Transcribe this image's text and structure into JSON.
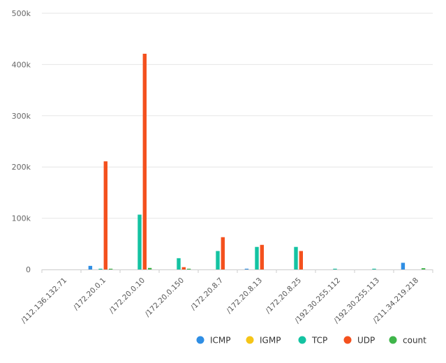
{
  "chart_data": {
    "type": "bar",
    "categories": [
      "/112.136.132.71",
      "/172.20.0.1",
      "/172.20.0.10",
      "/172.20.0.150",
      "/172.20.8.7",
      "/172.20.8.13",
      "/172.20.8.25",
      "/192.30.255.112",
      "/192.30.255.113",
      "/211.34.219.218"
    ],
    "series": [
      {
        "name": "ICMP",
        "color": "#2f8ee4",
        "values": [
          0,
          7000,
          0,
          0,
          0,
          1500,
          0,
          0,
          0,
          13000
        ]
      },
      {
        "name": "IGMP",
        "color": "#f5c518",
        "values": [
          0,
          0,
          0,
          0,
          0,
          0,
          0,
          0,
          0,
          0
        ]
      },
      {
        "name": "TCP",
        "color": "#14c3a2",
        "values": [
          0,
          1500,
          107000,
          22000,
          36000,
          44000,
          44000,
          1500,
          1500,
          0
        ]
      },
      {
        "name": "UDP",
        "color": "#f4511e",
        "values": [
          0,
          211000,
          421000,
          4500,
          63000,
          48000,
          36000,
          0,
          0,
          0
        ]
      },
      {
        "name": "count",
        "color": "#3fb54a",
        "values": [
          0,
          1500,
          3000,
          1500,
          0,
          0,
          0,
          0,
          0,
          2500
        ]
      }
    ],
    "y_ticks": [
      "0",
      "100k",
      "200k",
      "300k",
      "400k",
      "500k"
    ],
    "ylim": [
      0,
      500000
    ],
    "grid": true,
    "legend_position": "bottom-right"
  }
}
